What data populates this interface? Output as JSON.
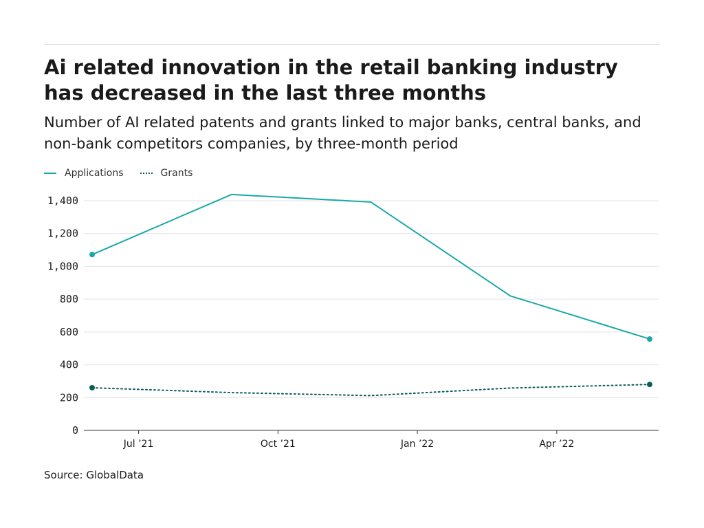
{
  "title": "Ai related innovation in the retail banking industry has decreased in the last three months",
  "subtitle": "Number of AI related patents and grants linked to major banks, central banks, and non-bank competitors companies, by three-month period",
  "source": "Source: GlobalData",
  "colors": {
    "applications": "#1aa8a8",
    "grants": "#0d5c5c",
    "grid": "#e3e3e3",
    "axis": "#333333"
  },
  "chart_data": {
    "type": "line",
    "x": [
      "2021-06",
      "2021-09",
      "2021-12",
      "2022-03",
      "2022-06"
    ],
    "x_tick_labels": [
      {
        "label": "Jul ’21",
        "at": "2021-07"
      },
      {
        "label": "Oct ’21",
        "at": "2021-10"
      },
      {
        "label": "Jan ’22",
        "at": "2022-01"
      },
      {
        "label": "Apr ’22",
        "at": "2022-04"
      }
    ],
    "series": [
      {
        "name": "Applications",
        "style": "solid",
        "values": [
          1072,
          1438,
          1392,
          820,
          557
        ]
      },
      {
        "name": "Grants",
        "style": "dotted",
        "values": [
          260,
          230,
          212,
          258,
          280
        ]
      }
    ],
    "ylim": [
      0,
      1400
    ],
    "yticks": [
      0,
      200,
      400,
      600,
      800,
      1000,
      1200,
      1400
    ],
    "grid": true,
    "legend": "top-left"
  }
}
